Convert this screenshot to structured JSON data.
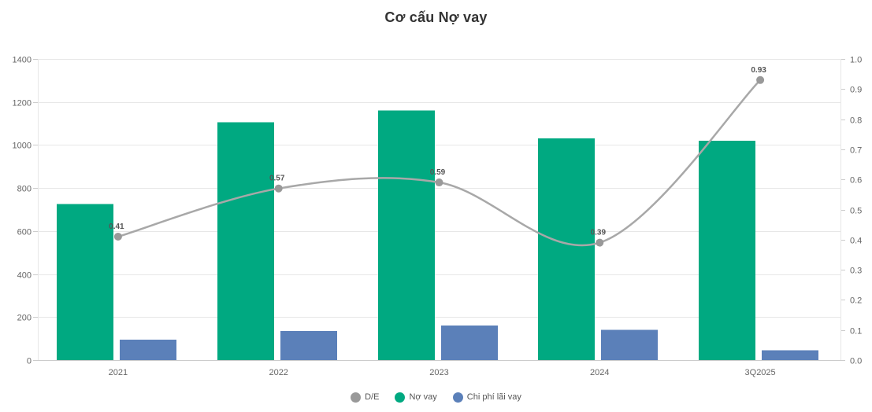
{
  "title": "Cơ cấu Nợ vay",
  "chart_data": {
    "type": "bar",
    "categories": [
      "2021",
      "2022",
      "2023",
      "2024",
      "3Q2025"
    ],
    "series": [
      {
        "name": "Nợ vay",
        "type": "bar",
        "axis": "left",
        "color": "#00a981",
        "values": [
          725,
          1105,
          1160,
          1030,
          1020
        ]
      },
      {
        "name": "Chi phí lãi vay",
        "type": "bar",
        "axis": "left",
        "color": "#5b80b9",
        "values": [
          95,
          135,
          160,
          140,
          45
        ]
      },
      {
        "name": "D/E",
        "type": "line",
        "axis": "right",
        "color": "#a8a8a8",
        "marker_color": "#999999",
        "values": [
          0.41,
          0.57,
          0.59,
          0.39,
          0.93
        ],
        "labels": [
          "0.41",
          "0.57",
          "0.59",
          "0.39",
          "0.93"
        ]
      }
    ],
    "left_axis": {
      "min": 0,
      "max": 1400,
      "ticks": [
        "0",
        "200",
        "400",
        "600",
        "800",
        "1000",
        "1200",
        "1400"
      ]
    },
    "right_axis": {
      "min": 0,
      "max": 1.0,
      "ticks": [
        "0.0",
        "0.1",
        "0.2",
        "0.3",
        "0.4",
        "0.5",
        "0.6",
        "0.7",
        "0.8",
        "0.9",
        "1.0"
      ]
    },
    "grid": true,
    "legend": {
      "position": "bottom",
      "items": [
        {
          "label": "D/E",
          "color": "#999999"
        },
        {
          "label": "Nợ vay",
          "color": "#00a981"
        },
        {
          "label": "Chi phí lãi vay",
          "color": "#5b80b9"
        }
      ]
    }
  }
}
